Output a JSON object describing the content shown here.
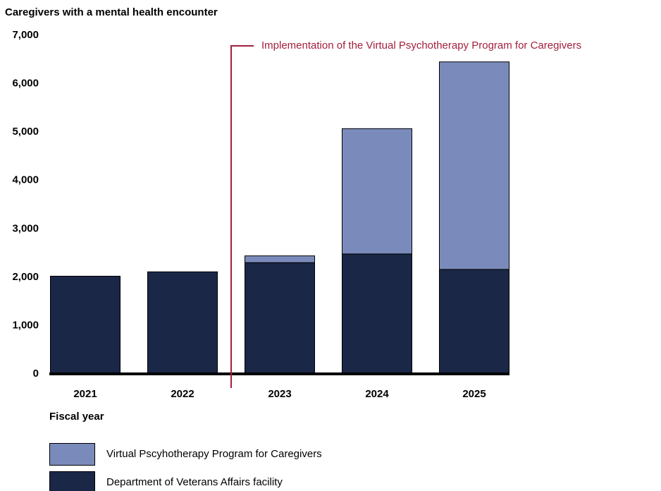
{
  "chart_data": {
    "type": "stacked_bar",
    "y_axis_title": "Caregivers with a mental health encounter",
    "x_axis_title": "Fiscal year",
    "annotation": "Implementation of the Virtual Psychotherapy Program for Caregivers",
    "annotation_color": "#a31f3c",
    "categories": [
      "2021",
      "2022",
      "2023",
      "2024",
      "2025"
    ],
    "series": [
      {
        "name": "Department of Veterans Affairs facility",
        "color": "#1a2747",
        "values": [
          2020,
          2110,
          2300,
          2480,
          2160
        ]
      },
      {
        "name": "Virtual Pscyhotherapy Program for Caregivers",
        "color": "#7a8bbb",
        "values": [
          0,
          0,
          140,
          2590,
          4290
        ]
      }
    ],
    "ylim": [
      0,
      7000
    ],
    "yticks": [
      {
        "value": 0,
        "label": "0"
      },
      {
        "value": 1000,
        "label": "1,000"
      },
      {
        "value": 2000,
        "label": "2,000"
      },
      {
        "value": 3000,
        "label": "3,000"
      },
      {
        "value": 4000,
        "label": "4,000"
      },
      {
        "value": 5000,
        "label": "5,000"
      },
      {
        "value": 6000,
        "label": "6,000"
      },
      {
        "value": 7000,
        "label": "7,000"
      }
    ]
  }
}
